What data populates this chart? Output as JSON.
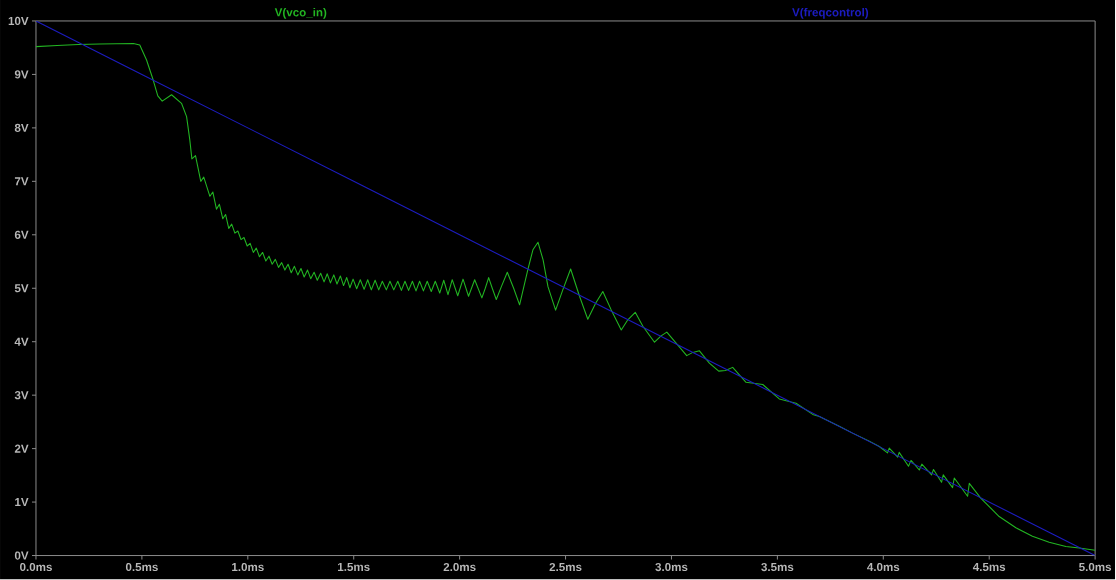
{
  "chart_data": {
    "type": "line",
    "legend": "top",
    "xlim": [
      0,
      5
    ],
    "ylim": [
      0,
      10
    ],
    "xticks": [
      {
        "value": 0,
        "label": "0.0ms"
      },
      {
        "value": 0.5,
        "label": "0.5ms"
      },
      {
        "value": 1,
        "label": "1.0ms"
      },
      {
        "value": 1.5,
        "label": "1.5ms"
      },
      {
        "value": 2,
        "label": "2.0ms"
      },
      {
        "value": 2.5,
        "label": "2.5ms"
      },
      {
        "value": 3,
        "label": "3.0ms"
      },
      {
        "value": 3.5,
        "label": "3.5ms"
      },
      {
        "value": 4,
        "label": "4.0ms"
      },
      {
        "value": 4.5,
        "label": "4.5ms"
      },
      {
        "value": 5,
        "label": "5.0ms"
      }
    ],
    "yticks": [
      {
        "value": 0,
        "label": "0V"
      },
      {
        "value": 1,
        "label": "1V"
      },
      {
        "value": 2,
        "label": "2V"
      },
      {
        "value": 3,
        "label": "3V"
      },
      {
        "value": 4,
        "label": "4V"
      },
      {
        "value": 5,
        "label": "5V"
      },
      {
        "value": 6,
        "label": "6V"
      },
      {
        "value": 7,
        "label": "7V"
      },
      {
        "value": 8,
        "label": "8V"
      },
      {
        "value": 9,
        "label": "9V"
      },
      {
        "value": 10,
        "label": "10V"
      }
    ],
    "series": [
      {
        "name": "V(vco_in)",
        "color": "#22b522",
        "x": [
          0.0,
          0.1,
          0.2,
          0.3,
          0.46,
          0.49,
          0.522,
          0.553,
          0.575,
          0.596,
          0.64,
          0.687,
          0.711,
          0.726,
          0.736,
          0.753,
          0.778,
          0.792,
          0.821,
          0.835,
          0.852,
          0.866,
          0.882,
          0.895,
          0.91,
          0.924,
          0.939,
          0.953,
          0.968,
          0.982,
          0.997,
          1.011,
          1.026,
          1.04,
          1.055,
          1.07,
          1.085,
          1.1,
          1.115,
          1.13,
          1.145,
          1.16,
          1.175,
          1.19,
          1.205,
          1.22,
          1.236,
          1.251,
          1.266,
          1.282,
          1.297,
          1.313,
          1.328,
          1.344,
          1.36,
          1.375,
          1.39,
          1.406,
          1.421,
          1.437,
          1.452,
          1.467,
          1.482,
          1.497,
          1.514,
          1.531,
          1.549,
          1.566,
          1.583,
          1.601,
          1.618,
          1.635,
          1.654,
          1.671,
          1.689,
          1.708,
          1.725,
          1.742,
          1.759,
          1.777,
          1.794,
          1.811,
          1.829,
          1.847,
          1.866,
          1.885,
          1.906,
          1.925,
          1.945,
          1.965,
          1.991,
          2.016,
          2.042,
          2.071,
          2.105,
          2.121,
          2.137,
          2.154,
          2.173,
          2.197,
          2.225,
          2.255,
          2.283,
          2.322,
          2.346,
          2.37,
          2.394,
          2.417,
          2.453,
          2.487,
          2.524,
          2.566,
          2.605,
          2.642,
          2.676,
          2.715,
          2.763,
          2.794,
          2.829,
          2.865,
          2.92,
          2.951,
          2.978,
          3.025,
          3.072,
          3.101,
          3.132,
          3.179,
          3.223,
          3.255,
          3.289,
          3.352,
          3.431,
          3.509,
          3.588,
          3.667,
          3.698,
          3.792,
          3.855,
          3.934,
          3.981,
          4.02,
          4.028,
          4.068,
          4.075,
          4.119,
          4.131,
          4.17,
          4.182,
          4.228,
          4.237,
          4.275,
          4.283,
          4.327,
          4.335,
          4.398,
          4.406,
          4.461,
          4.547,
          4.626,
          4.704,
          4.783,
          4.862,
          4.925,
          5.0
        ],
        "values": [
          9.52,
          9.54,
          9.56,
          9.57,
          9.58,
          9.55,
          9.27,
          8.9,
          8.6,
          8.5,
          8.62,
          8.46,
          8.21,
          7.78,
          7.42,
          7.48,
          7.0,
          7.08,
          6.72,
          6.8,
          6.48,
          6.57,
          6.3,
          6.38,
          6.12,
          6.2,
          6.03,
          6.07,
          5.91,
          5.95,
          5.79,
          5.84,
          5.67,
          5.75,
          5.59,
          5.67,
          5.51,
          5.6,
          5.45,
          5.54,
          5.39,
          5.48,
          5.34,
          5.45,
          5.29,
          5.41,
          5.25,
          5.37,
          5.21,
          5.34,
          5.18,
          5.3,
          5.15,
          5.28,
          5.12,
          5.27,
          5.1,
          5.25,
          5.08,
          5.23,
          5.05,
          5.2,
          5.01,
          5.17,
          4.99,
          5.16,
          4.98,
          5.16,
          4.97,
          5.15,
          4.97,
          5.13,
          4.97,
          5.13,
          4.97,
          5.13,
          4.96,
          5.13,
          4.96,
          5.13,
          4.95,
          5.13,
          4.95,
          5.13,
          4.94,
          5.13,
          4.91,
          5.15,
          4.88,
          5.16,
          4.86,
          5.17,
          4.85,
          5.16,
          4.82,
          5.0,
          5.2,
          5.0,
          4.79,
          5.03,
          5.3,
          5.0,
          4.69,
          5.35,
          5.72,
          5.86,
          5.53,
          5.03,
          4.59,
          4.97,
          5.36,
          4.85,
          4.42,
          4.72,
          4.94,
          4.6,
          4.22,
          4.41,
          4.55,
          4.29,
          3.99,
          4.11,
          4.18,
          3.96,
          3.74,
          3.8,
          3.83,
          3.6,
          3.45,
          3.46,
          3.52,
          3.24,
          3.2,
          2.93,
          2.85,
          2.64,
          2.6,
          2.42,
          2.29,
          2.14,
          2.04,
          1.92,
          2.01,
          1.84,
          1.93,
          1.67,
          1.78,
          1.6,
          1.71,
          1.51,
          1.61,
          1.37,
          1.51,
          1.27,
          1.45,
          1.11,
          1.35,
          1.07,
          0.73,
          0.52,
          0.36,
          0.25,
          0.17,
          0.14,
          0.1
        ]
      },
      {
        "name": "V(freqcontrol)",
        "color": "#1c1cc0",
        "x": [
          0,
          0.5,
          1,
          1.5,
          2,
          2.5,
          3,
          3.5,
          4,
          4.5,
          5
        ],
        "values": [
          10,
          9,
          8,
          7,
          6,
          5,
          4,
          3,
          2,
          1,
          0
        ]
      }
    ]
  }
}
